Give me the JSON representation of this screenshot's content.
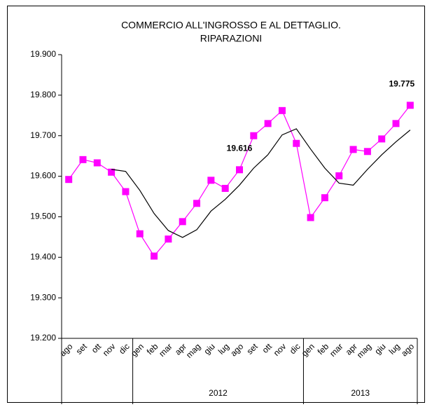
{
  "chart_data": {
    "type": "line",
    "title_lines": [
      "COMMERCIO ALL'INGROSSO E AL DETTAGLIO.",
      "RIPARAZIONI"
    ],
    "categories": [
      "ago",
      "set",
      "ott",
      "nov",
      "dic",
      "gen",
      "feb",
      "mar",
      "apr",
      "mag",
      "giu",
      "lug",
      "ago",
      "set",
      "ott",
      "nov",
      "dic",
      "gen",
      "feb",
      "mar",
      "apr",
      "mag",
      "giu",
      "lug",
      "ago"
    ],
    "category_groups": [
      {
        "label": null,
        "count": 5
      },
      {
        "label": "2012",
        "count": 12
      },
      {
        "label": "2013",
        "count": 8
      }
    ],
    "series": [
      {
        "color": "#ff00ff",
        "marker": "square",
        "values": [
          19592,
          19641,
          19633,
          19610,
          19562,
          19458,
          19403,
          19445,
          19488,
          19533,
          19590,
          19570,
          19616,
          19700,
          19730,
          19762,
          19681,
          19498,
          19547,
          19601,
          19666,
          19661,
          19692,
          19730,
          19775
        ],
        "value_labels": [
          null,
          null,
          null,
          null,
          null,
          null,
          null,
          null,
          null,
          null,
          null,
          null,
          "19.616",
          null,
          null,
          null,
          null,
          null,
          null,
          null,
          null,
          null,
          null,
          null,
          "19.775"
        ]
      },
      {
        "color": "#000000",
        "marker": null,
        "values": [
          null,
          null,
          null,
          19617,
          19612,
          19565,
          19508,
          19466,
          19449,
          19468,
          19514,
          19543,
          19578,
          19620,
          19653,
          19702,
          19717,
          19667,
          19620,
          19583,
          19578,
          19617,
          19653,
          19685,
          19714
        ]
      }
    ],
    "ylim": [
      19200,
      19900
    ],
    "yticks": [
      {
        "value": 19200,
        "label": "19.200"
      },
      {
        "value": 19300,
        "label": "19.300"
      },
      {
        "value": 19400,
        "label": "19.400"
      },
      {
        "value": 19500,
        "label": "19.500"
      },
      {
        "value": 19600,
        "label": "19.600"
      },
      {
        "value": 19700,
        "label": "19.700"
      },
      {
        "value": 19800,
        "label": "19.800"
      },
      {
        "value": 19900,
        "label": "19.900"
      }
    ],
    "grid": false
  }
}
